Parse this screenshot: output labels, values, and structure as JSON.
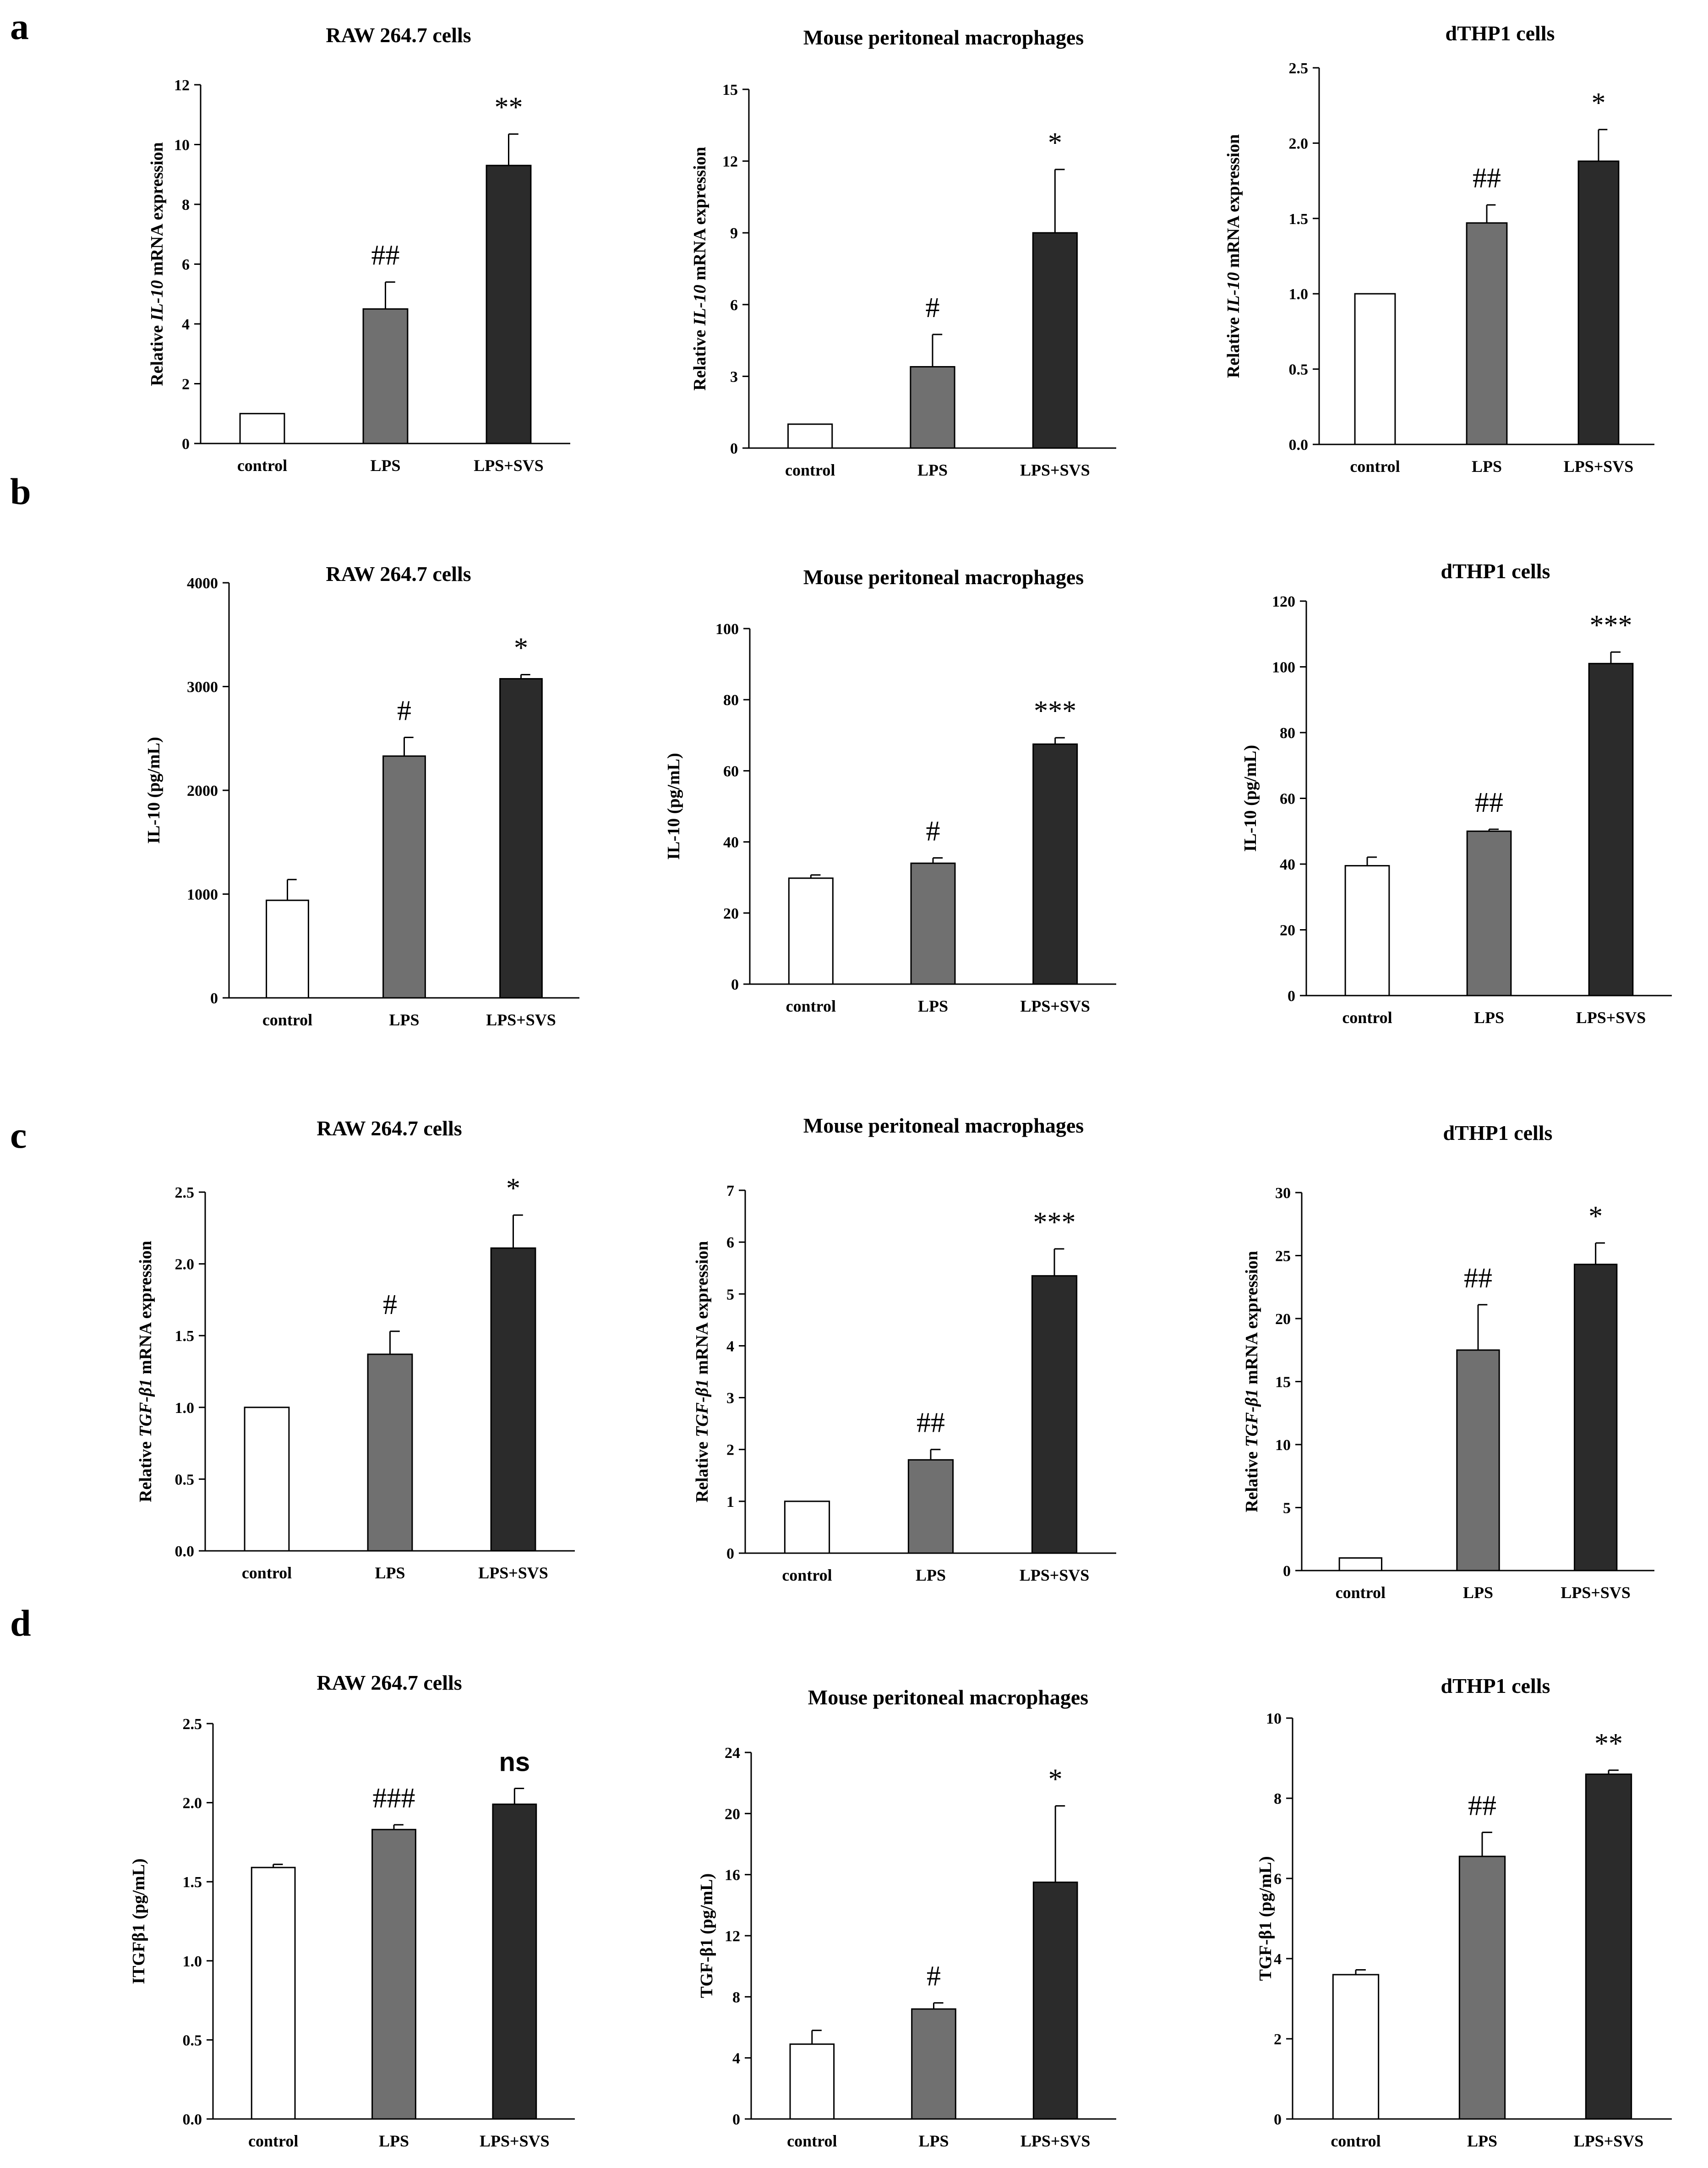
{
  "panels": [
    {
      "letter": "a",
      "charts": [
        0,
        1,
        2
      ]
    },
    {
      "letter": "b",
      "charts": [
        3,
        4,
        5
      ]
    },
    {
      "letter": "c",
      "charts": [
        6,
        7,
        8
      ]
    },
    {
      "letter": "d",
      "charts": [
        9,
        10,
        11
      ]
    }
  ],
  "colors": {
    "control": "#ffffff",
    "LPS": "#707070",
    "LPS+SVS": "#2b2b2b",
    "axis": "#000000"
  },
  "chart_data": [
    {
      "type": "bar",
      "panel": "a",
      "title": "RAW 264.7 cells",
      "ylabel": [
        "Relative ",
        "IL-10",
        " mRNA expression"
      ],
      "categories": [
        "control",
        "LPS",
        "LPS+SVS"
      ],
      "values": [
        1.0,
        4.5,
        9.3
      ],
      "errors": [
        0,
        0.9,
        1.05
      ],
      "annotations": [
        "",
        "##",
        "**"
      ],
      "ylim": [
        0,
        12
      ],
      "yticks": [
        "0",
        "2",
        "4",
        "6",
        "8",
        "10",
        "12"
      ]
    },
    {
      "type": "bar",
      "panel": "a",
      "title": "Mouse peritoneal macrophages",
      "ylabel": [
        "Relative ",
        "IL-10",
        " mRNA expression"
      ],
      "categories": [
        "control",
        "LPS",
        "LPS+SVS"
      ],
      "values": [
        1.0,
        3.4,
        9.0
      ],
      "errors": [
        0,
        1.35,
        2.65
      ],
      "annotations": [
        "",
        "#",
        "*"
      ],
      "ylim": [
        0,
        15
      ],
      "yticks": [
        "0",
        "3",
        "6",
        "9",
        "12",
        "15"
      ]
    },
    {
      "type": "bar",
      "panel": "a",
      "title": "dTHP1 cells",
      "ylabel": [
        "Relative ",
        "IL-10",
        " mRNA expression"
      ],
      "categories": [
        "control",
        "LPS",
        "LPS+SVS"
      ],
      "values": [
        1.0,
        1.47,
        1.88
      ],
      "errors": [
        0,
        0.12,
        0.21
      ],
      "annotations": [
        "",
        "##",
        "*"
      ],
      "ylim": [
        0,
        2.5
      ],
      "yticks": [
        "0.0",
        "0.5",
        "1.0",
        "1.5",
        "2.0",
        "2.5"
      ]
    },
    {
      "type": "bar",
      "panel": "b",
      "title": "RAW 264.7 cells",
      "ylabel": [
        "IL-10 (pg/mL)"
      ],
      "categories": [
        "control",
        "LPS",
        "LPS+SVS"
      ],
      "values": [
        940,
        2330,
        3075
      ],
      "errors": [
        200,
        180,
        40
      ],
      "annotations": [
        "",
        "#",
        "*"
      ],
      "ylim": [
        0,
        4000
      ],
      "yticks": [
        "0",
        "1000",
        "2000",
        "3000",
        "4000"
      ]
    },
    {
      "type": "bar",
      "panel": "b",
      "title": "Mouse peritoneal macrophages",
      "ylabel": [
        "IL-10 (pg/mL)"
      ],
      "categories": [
        "control",
        "LPS",
        "LPS+SVS"
      ],
      "values": [
        29.8,
        34.0,
        67.5
      ],
      "errors": [
        0.9,
        1.5,
        1.8
      ],
      "annotations": [
        "",
        "#",
        "***"
      ],
      "ylim": [
        0,
        100
      ],
      "yticks": [
        "0",
        "20",
        "40",
        "60",
        "80",
        "100"
      ]
    },
    {
      "type": "bar",
      "panel": "b",
      "title": "dTHP1 cells",
      "ylabel": [
        "IL-10 (pg/mL)"
      ],
      "categories": [
        "control",
        "LPS",
        "LPS+SVS"
      ],
      "values": [
        39.5,
        50.0,
        101.0
      ],
      "errors": [
        2.6,
        0.6,
        3.5
      ],
      "annotations": [
        "",
        "##",
        "***"
      ],
      "ylim": [
        0,
        120
      ],
      "yticks": [
        "0",
        "20",
        "40",
        "60",
        "80",
        "100",
        "120"
      ]
    },
    {
      "type": "bar",
      "panel": "c",
      "title": "RAW 264.7 cells",
      "ylabel": [
        "Relative ",
        "TGF-β1",
        " mRNA expression"
      ],
      "categories": [
        "control",
        "LPS",
        "LPS+SVS"
      ],
      "values": [
        1.0,
        1.37,
        2.11
      ],
      "errors": [
        0,
        0.16,
        0.23
      ],
      "annotations": [
        "",
        "#",
        "*"
      ],
      "ylim": [
        0,
        2.5
      ],
      "yticks": [
        "0.0",
        "0.5",
        "1.0",
        "1.5",
        "2.0",
        "2.5"
      ]
    },
    {
      "type": "bar",
      "panel": "c",
      "title": "Mouse peritoneal macrophages",
      "ylabel": [
        "Relative ",
        "TGF-β1",
        " mRNA expression"
      ],
      "categories": [
        "control",
        "LPS",
        "LPS+SVS"
      ],
      "values": [
        1.0,
        1.8,
        5.35
      ],
      "errors": [
        0,
        0.2,
        0.52
      ],
      "annotations": [
        "",
        "##",
        "***"
      ],
      "ylim": [
        0,
        7
      ],
      "yticks": [
        "0",
        "1",
        "2",
        "3",
        "4",
        "5",
        "6",
        "7"
      ]
    },
    {
      "type": "bar",
      "panel": "c",
      "title": "dTHP1 cells",
      "ylabel": [
        "Relative ",
        "TGF-β1",
        " mRNA expression"
      ],
      "categories": [
        "control",
        "LPS",
        "LPS+SVS"
      ],
      "values": [
        1.0,
        17.5,
        24.3
      ],
      "errors": [
        0,
        3.6,
        1.7
      ],
      "annotations": [
        "",
        "##",
        "*"
      ],
      "ylim": [
        0,
        30
      ],
      "yticks": [
        "0",
        "5",
        "10",
        "15",
        "20",
        "25",
        "30"
      ]
    },
    {
      "type": "bar",
      "panel": "d",
      "title": "RAW 264.7 cells",
      "ylabel": [
        "ITGFβ1 (pg/mL)"
      ],
      "categories": [
        "control",
        "LPS",
        "LPS+SVS"
      ],
      "values": [
        1.59,
        1.83,
        1.99
      ],
      "errors": [
        0.02,
        0.03,
        0.1
      ],
      "annotations": [
        "",
        "###",
        "ns"
      ],
      "ylim": [
        0,
        2.5
      ],
      "yticks": [
        "0.0",
        "0.5",
        "1.0",
        "1.5",
        "2.0",
        "2.5"
      ]
    },
    {
      "type": "bar",
      "panel": "d",
      "title": "Mouse peritoneal macrophages",
      "ylabel": [
        "TGF-β1 (pg/mL)"
      ],
      "categories": [
        "control",
        "LPS",
        "LPS+SVS"
      ],
      "values": [
        4.9,
        7.2,
        15.5
      ],
      "errors": [
        0.9,
        0.4,
        5.0
      ],
      "annotations": [
        "",
        "#",
        "*"
      ],
      "ylim": [
        0,
        24
      ],
      "yticks": [
        "0",
        "4",
        "8",
        "12",
        "16",
        "20",
        "24"
      ]
    },
    {
      "type": "bar",
      "panel": "d",
      "title": "dTHP1 cells",
      "ylabel": [
        "TGF-β1 (pg/mL)"
      ],
      "categories": [
        "control",
        "LPS",
        "LPS+SVS"
      ],
      "values": [
        3.6,
        6.55,
        8.6
      ],
      "errors": [
        0.12,
        0.6,
        0.1
      ],
      "annotations": [
        "",
        "##",
        "**"
      ],
      "ylim": [
        0,
        10
      ],
      "yticks": [
        "0",
        "2",
        "4",
        "6",
        "8",
        "10"
      ]
    }
  ]
}
